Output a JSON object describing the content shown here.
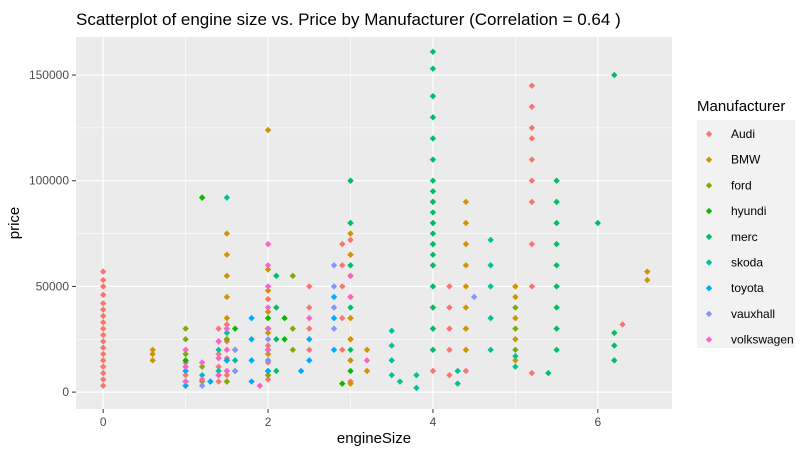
{
  "chart_data": {
    "type": "scatter",
    "title": "Scatterplot of engine size vs. Price by Manufacturer (Correlation = 0.64 )",
    "xlabel": "engineSize",
    "ylabel": "price",
    "xlim": [
      -0.33,
      6.9
    ],
    "ylim": [
      -8000,
      168000
    ],
    "xticks": [
      0,
      2,
      4,
      6
    ],
    "yticks": [
      0,
      50000,
      100000,
      150000
    ],
    "yticklabels": [
      "0",
      "50000",
      "100000",
      "150000"
    ],
    "grid": true,
    "legend_title": "Manufacturer",
    "legend_position": "right",
    "series": [
      {
        "name": "Audi",
        "color": "#F8766D",
        "points": [
          [
            0,
            3000
          ],
          [
            0,
            6000
          ],
          [
            0,
            9000
          ],
          [
            0,
            12000
          ],
          [
            0,
            15000
          ],
          [
            0,
            18000
          ],
          [
            0,
            21000
          ],
          [
            0,
            24000
          ],
          [
            0,
            27000
          ],
          [
            0,
            30000
          ],
          [
            0,
            33000
          ],
          [
            0,
            36000
          ],
          [
            0,
            39000
          ],
          [
            0,
            42000
          ],
          [
            0,
            46000
          ],
          [
            0,
            50000
          ],
          [
            0,
            53000
          ],
          [
            0,
            57000
          ],
          [
            1.0,
            8000
          ],
          [
            1.0,
            14000
          ],
          [
            1.0,
            20000
          ],
          [
            1.4,
            5000
          ],
          [
            1.4,
            12000
          ],
          [
            1.4,
            18000
          ],
          [
            1.4,
            24000
          ],
          [
            1.4,
            30000
          ],
          [
            1.5,
            8000
          ],
          [
            1.5,
            16000
          ],
          [
            1.5,
            24000
          ],
          [
            1.5,
            32000
          ],
          [
            2.0,
            6000
          ],
          [
            2.0,
            14000
          ],
          [
            2.0,
            22000
          ],
          [
            2.0,
            30000
          ],
          [
            2.0,
            38000
          ],
          [
            2.0,
            44000
          ],
          [
            2.5,
            20000
          ],
          [
            2.5,
            30000
          ],
          [
            2.5,
            40000
          ],
          [
            2.5,
            50000
          ],
          [
            2.9,
            20000
          ],
          [
            2.9,
            35000
          ],
          [
            2.9,
            50000
          ],
          [
            2.9,
            60000
          ],
          [
            2.9,
            70000
          ],
          [
            3.0,
            5000
          ],
          [
            3.0,
            15000
          ],
          [
            3.0,
            25000
          ],
          [
            3.0,
            35000
          ],
          [
            3.0,
            45000
          ],
          [
            3.0,
            55000
          ],
          [
            3.0,
            65000
          ],
          [
            3.0,
            72000
          ],
          [
            4.0,
            10000
          ],
          [
            4.0,
            20000
          ],
          [
            4.0,
            30000
          ],
          [
            4.0,
            40000
          ],
          [
            4.0,
            50000
          ],
          [
            4.0,
            60000
          ],
          [
            4.0,
            70000
          ],
          [
            4.0,
            80000
          ],
          [
            4.0,
            90000
          ],
          [
            4.2,
            8000
          ],
          [
            4.2,
            20000
          ],
          [
            4.2,
            30000
          ],
          [
            4.2,
            40000
          ],
          [
            4.2,
            50000
          ],
          [
            4.4,
            10000
          ],
          [
            4.4,
            20000
          ],
          [
            4.4,
            30000
          ],
          [
            5.2,
            9000
          ],
          [
            5.2,
            50000
          ],
          [
            5.2,
            70000
          ],
          [
            5.2,
            90000
          ],
          [
            5.2,
            100000
          ],
          [
            5.2,
            110000
          ],
          [
            5.2,
            120000
          ],
          [
            5.2,
            125000
          ],
          [
            5.2,
            135000
          ],
          [
            5.2,
            145000
          ],
          [
            6.3,
            32000
          ]
        ]
      },
      {
        "name": "BMW",
        "color": "#CD9600",
        "points": [
          [
            0.6,
            15000
          ],
          [
            0.6,
            18000
          ],
          [
            0.6,
            20000
          ],
          [
            1.5,
            5000
          ],
          [
            1.5,
            15000
          ],
          [
            1.5,
            25000
          ],
          [
            1.5,
            35000
          ],
          [
            1.5,
            45000
          ],
          [
            1.5,
            55000
          ],
          [
            1.5,
            65000
          ],
          [
            1.5,
            75000
          ],
          [
            2.0,
            8000
          ],
          [
            2.0,
            18000
          ],
          [
            2.0,
            28000
          ],
          [
            2.0,
            38000
          ],
          [
            2.0,
            48000
          ],
          [
            2.0,
            58000
          ],
          [
            2.0,
            124000
          ],
          [
            3.0,
            4000
          ],
          [
            3.0,
            15000
          ],
          [
            3.0,
            25000
          ],
          [
            3.0,
            35000
          ],
          [
            3.0,
            45000
          ],
          [
            3.0,
            55000
          ],
          [
            3.0,
            65000
          ],
          [
            3.0,
            75000
          ],
          [
            3.0,
            80000
          ],
          [
            3.0,
            100000
          ],
          [
            3.2,
            10000
          ],
          [
            3.2,
            20000
          ],
          [
            4.4,
            20000
          ],
          [
            4.4,
            30000
          ],
          [
            4.4,
            40000
          ],
          [
            4.4,
            50000
          ],
          [
            4.4,
            60000
          ],
          [
            4.4,
            70000
          ],
          [
            4.4,
            80000
          ],
          [
            4.4,
            90000
          ],
          [
            5.0,
            15000
          ],
          [
            5.0,
            25000
          ],
          [
            5.0,
            35000
          ],
          [
            5.0,
            45000
          ],
          [
            5.0,
            50000
          ],
          [
            6.6,
            53000
          ],
          [
            6.6,
            57000
          ]
        ]
      },
      {
        "name": "ford",
        "color": "#7CAE00",
        "points": [
          [
            1.0,
            3000
          ],
          [
            1.0,
            10000
          ],
          [
            1.0,
            18000
          ],
          [
            1.0,
            25000
          ],
          [
            1.0,
            30000
          ],
          [
            1.2,
            92000
          ],
          [
            1.2,
            5000
          ],
          [
            1.2,
            12000
          ],
          [
            1.5,
            5000
          ],
          [
            1.5,
            15000
          ],
          [
            1.5,
            25000
          ],
          [
            2.0,
            8000
          ],
          [
            2.0,
            20000
          ],
          [
            2.0,
            30000
          ],
          [
            2.3,
            55000
          ],
          [
            2.3,
            30000
          ],
          [
            2.3,
            20000
          ],
          [
            5.0,
            20000
          ],
          [
            5.0,
            30000
          ],
          [
            5.0,
            40000
          ]
        ]
      },
      {
        "name": "hyundi",
        "color": "#0CB702",
        "points": [
          [
            1.0,
            5000
          ],
          [
            1.0,
            15000
          ],
          [
            1.2,
            92000
          ],
          [
            1.4,
            8000
          ],
          [
            1.6,
            10000
          ],
          [
            1.6,
            20000
          ],
          [
            1.6,
            30000
          ],
          [
            2.0,
            10000
          ],
          [
            2.0,
            20000
          ],
          [
            2.0,
            35000
          ],
          [
            2.2,
            25000
          ],
          [
            2.2,
            35000
          ],
          [
            2.9,
            4000
          ],
          [
            3.0,
            10000
          ]
        ]
      },
      {
        "name": "merc",
        "color": "#00BE67",
        "points": [
          [
            1.3,
            5000
          ],
          [
            1.5,
            10000
          ],
          [
            2.0,
            15000
          ],
          [
            2.0,
            30000
          ],
          [
            2.1,
            10000
          ],
          [
            2.1,
            25000
          ],
          [
            2.1,
            40000
          ],
          [
            2.1,
            55000
          ],
          [
            3.0,
            20000
          ],
          [
            3.0,
            40000
          ],
          [
            3.0,
            60000
          ],
          [
            3.0,
            80000
          ],
          [
            3.0,
            100000
          ],
          [
            4.0,
            20000
          ],
          [
            4.0,
            30000
          ],
          [
            4.0,
            40000
          ],
          [
            4.0,
            50000
          ],
          [
            4.0,
            60000
          ],
          [
            4.0,
            65000
          ],
          [
            4.0,
            70000
          ],
          [
            4.0,
            75000
          ],
          [
            4.0,
            80000
          ],
          [
            4.0,
            85000
          ],
          [
            4.0,
            90000
          ],
          [
            4.0,
            95000
          ],
          [
            4.0,
            100000
          ],
          [
            4.0,
            110000
          ],
          [
            4.0,
            120000
          ],
          [
            4.0,
            130000
          ],
          [
            4.0,
            140000
          ],
          [
            4.0,
            153000
          ],
          [
            4.0,
            161000
          ],
          [
            5.5,
            20000
          ],
          [
            5.5,
            30000
          ],
          [
            5.5,
            40000
          ],
          [
            5.5,
            50000
          ],
          [
            5.5,
            60000
          ],
          [
            5.5,
            70000
          ],
          [
            5.5,
            80000
          ],
          [
            5.5,
            90000
          ],
          [
            5.5,
            100000
          ],
          [
            5.4,
            9000
          ],
          [
            6.0,
            80000
          ],
          [
            6.2,
            150000
          ],
          [
            6.2,
            15000
          ],
          [
            6.2,
            22000
          ],
          [
            6.2,
            28000
          ]
        ]
      },
      {
        "name": "skoda",
        "color": "#00C19A",
        "points": [
          [
            1.0,
            5000
          ],
          [
            1.0,
            12000
          ],
          [
            1.2,
            8000
          ],
          [
            1.4,
            10000
          ],
          [
            1.4,
            20000
          ],
          [
            1.5,
            92000
          ],
          [
            1.5,
            28000
          ],
          [
            1.6,
            15000
          ],
          [
            2.0,
            20000
          ],
          [
            2.0,
            30000
          ],
          [
            3.5,
            8000
          ],
          [
            3.5,
            15000
          ],
          [
            3.5,
            22000
          ],
          [
            3.5,
            29000
          ],
          [
            3.6,
            5000
          ],
          [
            3.8,
            2000
          ],
          [
            3.8,
            8000
          ],
          [
            4.3,
            4000
          ],
          [
            4.3,
            10000
          ],
          [
            4.7,
            20000
          ],
          [
            4.7,
            35000
          ],
          [
            4.7,
            50000
          ],
          [
            4.7,
            60000
          ],
          [
            4.7,
            72000
          ],
          [
            5.0,
            12000
          ],
          [
            5.0,
            17000
          ]
        ]
      },
      {
        "name": "toyota",
        "color": "#00A9FF",
        "points": [
          [
            1.0,
            3000
          ],
          [
            1.0,
            10000
          ],
          [
            1.3,
            5000
          ],
          [
            1.5,
            15000
          ],
          [
            1.8,
            5000
          ],
          [
            1.8,
            15000
          ],
          [
            1.8,
            25000
          ],
          [
            1.8,
            35000
          ],
          [
            2.0,
            10000
          ],
          [
            2.4,
            10000
          ],
          [
            2.5,
            15000
          ],
          [
            2.5,
            25000
          ],
          [
            2.8,
            20000
          ],
          [
            2.8,
            35000
          ],
          [
            2.8,
            45000
          ]
        ]
      },
      {
        "name": "vauxhall",
        "color": "#8494FF",
        "points": [
          [
            1.2,
            3000
          ],
          [
            1.4,
            8000
          ],
          [
            1.6,
            10000
          ],
          [
            1.6,
            20000
          ],
          [
            2.0,
            15000
          ],
          [
            2.0,
            25000
          ],
          [
            2.8,
            30000
          ],
          [
            2.8,
            40000
          ],
          [
            2.8,
            50000
          ],
          [
            2.8,
            60000
          ],
          [
            4.5,
            45000
          ]
        ]
      },
      {
        "name": "volkswagen",
        "color": "#FF61CC",
        "points": [
          [
            1.0,
            5000
          ],
          [
            1.0,
            12000
          ],
          [
            1.0,
            20000
          ],
          [
            1.2,
            6000
          ],
          [
            1.2,
            14000
          ],
          [
            1.4,
            8000
          ],
          [
            1.4,
            16000
          ],
          [
            1.4,
            24000
          ],
          [
            1.5,
            10000
          ],
          [
            1.5,
            20000
          ],
          [
            1.5,
            30000
          ],
          [
            1.9,
            3000
          ],
          [
            2.0,
            20000
          ],
          [
            2.0,
            30000
          ],
          [
            2.0,
            40000
          ],
          [
            2.0,
            50000
          ],
          [
            2.0,
            60000
          ],
          [
            2.0,
            70000
          ],
          [
            2.5,
            35000
          ],
          [
            3.0,
            45000
          ],
          [
            3.0,
            55000
          ],
          [
            3.2,
            15000
          ]
        ]
      }
    ]
  }
}
